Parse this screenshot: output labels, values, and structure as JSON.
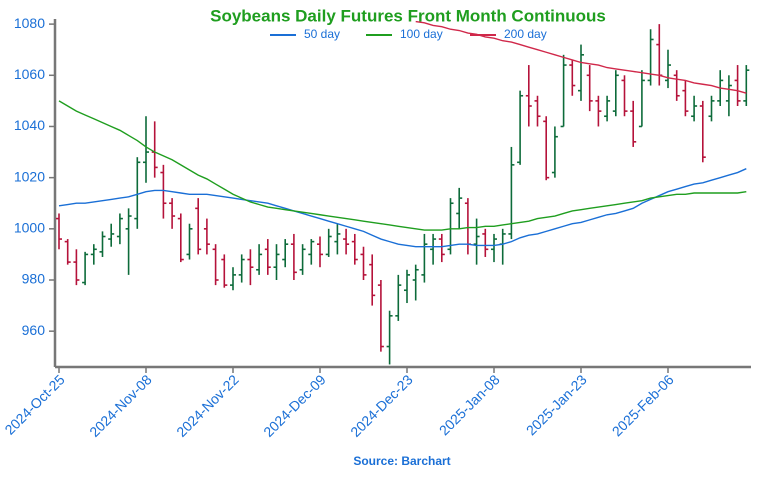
{
  "chart_data": {
    "type": "ohlc",
    "title": "Soybeans Daily Futures Front Month Continuous",
    "source": "Source: Barchart",
    "categories": [
      "2024-Oct-25",
      null,
      null,
      null,
      null,
      null,
      null,
      null,
      null,
      null,
      "2024-Nov-08",
      null,
      null,
      null,
      null,
      null,
      null,
      null,
      null,
      null,
      "2024-Nov-22",
      null,
      null,
      null,
      null,
      null,
      null,
      null,
      null,
      null,
      "2024-Dec-09",
      null,
      null,
      null,
      null,
      null,
      null,
      null,
      null,
      null,
      "2024-Dec-23",
      null,
      null,
      null,
      null,
      null,
      null,
      null,
      null,
      null,
      "2025-Jan-08",
      null,
      null,
      null,
      null,
      null,
      null,
      null,
      null,
      null,
      "2025-Jan-23",
      null,
      null,
      null,
      null,
      null,
      null,
      null,
      null,
      null,
      "2025-Feb-06",
      null,
      null,
      null,
      null,
      null,
      null,
      null,
      null,
      null
    ],
    "open": [
      1004,
      995,
      987,
      979,
      990,
      991,
      996,
      997,
      1000,
      1004,
      1026,
      1030,
      1022,
      1010,
      1004,
      990,
      1008,
      1000,
      992,
      988,
      978,
      982,
      988,
      984,
      992,
      985,
      988,
      994,
      984,
      990,
      994,
      990,
      995,
      996,
      995,
      990,
      986,
      978,
      954,
      966,
      976,
      980,
      982,
      992,
      996,
      992,
      1006,
      1010,
      994,
      998,
      992,
      994,
      998,
      1026,
      1052,
      1050,
      1042,
      1022,
      1040,
      1064,
      1054,
      1060,
      1050,
      1044,
      1046,
      1058,
      1046,
      1040,
      1058,
      1072,
      1058,
      1060,
      1054,
      1044,
      1048,
      1044,
      1050,
      1050,
      1058,
      1050
    ],
    "high": [
      1006,
      996,
      992,
      991,
      994,
      999,
      1002,
      1006,
      1008,
      1028,
      1044,
      1042,
      1025,
      1012,
      1006,
      1002,
      1012,
      1004,
      994,
      990,
      985,
      990,
      992,
      994,
      996,
      994,
      996,
      998,
      994,
      996,
      997,
      1000,
      1002,
      1000,
      998,
      993,
      990,
      980,
      968,
      982,
      984,
      986,
      998,
      998,
      998,
      1012,
      1016,
      1012,
      1004,
      1000,
      998,
      1000,
      1032,
      1054,
      1064,
      1052,
      1044,
      1040,
      1068,
      1066,
      1072,
      1064,
      1052,
      1052,
      1062,
      1060,
      1050,
      1062,
      1078,
      1080,
      1070,
      1062,
      1058,
      1052,
      1050,
      1052,
      1062,
      1060,
      1064,
      1064
    ],
    "low": [
      992,
      986,
      978,
      978,
      986,
      989,
      993,
      994,
      982,
      1000,
      1018,
      1020,
      1004,
      1000,
      987,
      988,
      990,
      990,
      978,
      977,
      976,
      979,
      978,
      982,
      982,
      980,
      985,
      980,
      982,
      986,
      985,
      989,
      990,
      990,
      986,
      980,
      970,
      952,
      947,
      964,
      971,
      972,
      979,
      986,
      987,
      990,
      1000,
      990,
      986,
      989,
      987,
      986,
      996,
      1025,
      1040,
      1040,
      1019,
      1020,
      1040,
      1052,
      1050,
      1046,
      1040,
      1042,
      1044,
      1044,
      1032,
      1040,
      1056,
      1056,
      1055,
      1050,
      1044,
      1042,
      1026,
      1042,
      1048,
      1044,
      1048,
      1048
    ],
    "close": [
      996,
      987,
      980,
      990,
      992,
      997,
      998,
      1004,
      1005,
      1026,
      1030,
      1024,
      1010,
      1005,
      988,
      1000,
      992,
      994,
      980,
      978,
      982,
      988,
      985,
      990,
      985,
      990,
      994,
      983,
      992,
      995,
      990,
      997,
      998,
      994,
      988,
      982,
      974,
      954,
      966,
      978,
      982,
      984,
      994,
      996,
      990,
      1010,
      1012,
      994,
      997,
      992,
      996,
      998,
      1025,
      1052,
      1048,
      1044,
      1020,
      1036,
      1064,
      1056,
      1068,
      1050,
      1046,
      1050,
      1060,
      1046,
      1034,
      1058,
      1074,
      1060,
      1064,
      1052,
      1046,
      1048,
      1028,
      1050,
      1058,
      1056,
      1050,
      1062
    ],
    "up_color": "#0d6b3a",
    "down_color": "#b5123a",
    "series": [
      {
        "name": "50 day",
        "color": "#1a6fd6",
        "values": [
          1009,
          1009.5,
          1010,
          1010,
          1010.5,
          1011,
          1011.5,
          1012,
          1012.5,
          1013.5,
          1014.5,
          1015,
          1015,
          1014.5,
          1014,
          1013.5,
          1013.5,
          1013.5,
          1013,
          1012.5,
          1012,
          1011.5,
          1011,
          1010.5,
          1010,
          1009,
          1008,
          1007,
          1006,
          1005,
          1004,
          1003,
          1002,
          1001,
          1000,
          999,
          997.5,
          996,
          995,
          994,
          993.5,
          993,
          993,
          993,
          993,
          993.5,
          994,
          994,
          993.5,
          993.5,
          993.5,
          994,
          995,
          996.5,
          997.5,
          998,
          999,
          1000,
          1001,
          1002,
          1002.5,
          1003.5,
          1004.5,
          1005.5,
          1006,
          1007,
          1008,
          1010,
          1011.5,
          1013,
          1014.5,
          1015.5,
          1016.5,
          1017.5,
          1018,
          1019,
          1020,
          1021,
          1022,
          1023.5
        ]
      },
      {
        "name": "100 day",
        "color": "#1f9e1f",
        "values": [
          1050,
          1048,
          1046,
          1044.5,
          1043,
          1041.5,
          1040,
          1038.5,
          1036.5,
          1034.5,
          1032,
          1030,
          1028.5,
          1027,
          1025,
          1023,
          1021,
          1019.5,
          1017.5,
          1015.5,
          1013.5,
          1012,
          1010.5,
          1009.5,
          1008.5,
          1008,
          1007.5,
          1007,
          1006.5,
          1006,
          1005.5,
          1005,
          1004.5,
          1004,
          1003.5,
          1003,
          1002.5,
          1002,
          1001.5,
          1001,
          1000.5,
          1000,
          999.5,
          999.5,
          999.5,
          1000,
          1000,
          1000.5,
          1000.5,
          1001,
          1001,
          1001.5,
          1002,
          1002.5,
          1003,
          1004,
          1004.5,
          1005,
          1006,
          1007,
          1007.5,
          1008,
          1008.5,
          1009,
          1009.5,
          1010,
          1010.5,
          1011,
          1012,
          1012.5,
          1013,
          1013.5,
          1013.5,
          1014,
          1014,
          1014,
          1014,
          1014,
          1014,
          1014.5
        ]
      },
      {
        "name": "200 day",
        "color": "#d0284a",
        "values": [
          null,
          null,
          null,
          null,
          null,
          null,
          null,
          null,
          null,
          null,
          null,
          null,
          null,
          null,
          null,
          null,
          null,
          null,
          null,
          null,
          null,
          null,
          null,
          null,
          null,
          null,
          null,
          null,
          null,
          null,
          null,
          null,
          null,
          null,
          null,
          null,
          null,
          null,
          null,
          null,
          null,
          1081,
          1080.5,
          1079.5,
          1079,
          1078,
          1077.5,
          1076.5,
          1076,
          1075,
          1074.5,
          1073.5,
          1073,
          1072,
          1071,
          1070,
          1069,
          1068,
          1067,
          1066,
          1065,
          1064.5,
          1064,
          1063,
          1062.5,
          1062,
          1061.5,
          1061,
          1060.5,
          1060,
          1059,
          1058.5,
          1058,
          1057,
          1056.5,
          1056,
          1055,
          1054.5,
          1054,
          1053
        ]
      }
    ],
    "ylim": [
      946,
      1082
    ],
    "yticks": [
      960,
      980,
      1000,
      1020,
      1040,
      1060,
      1080
    ]
  }
}
